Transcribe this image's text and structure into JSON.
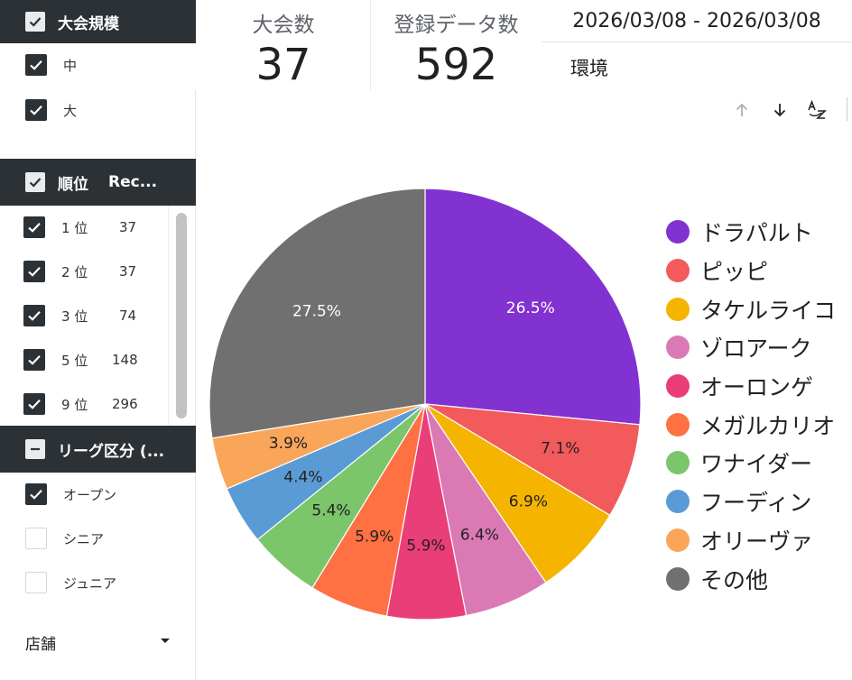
{
  "sidebar": {
    "size_filter": {
      "title": "大会規模",
      "options": [
        {
          "label": "中",
          "checked": true
        },
        {
          "label": "大",
          "checked": true
        }
      ]
    },
    "rank_filter": {
      "title": "順位",
      "column": "Rec...",
      "options": [
        {
          "label": "1 位",
          "count": "37",
          "checked": true
        },
        {
          "label": "2 位",
          "count": "37",
          "checked": true
        },
        {
          "label": "3 位",
          "count": "74",
          "checked": true
        },
        {
          "label": "5 位",
          "count": "148",
          "checked": true
        },
        {
          "label": "9 位",
          "count": "296",
          "checked": true
        }
      ]
    },
    "league_filter": {
      "title": "リーグ区分 (...",
      "options": [
        {
          "label": "オープン",
          "checked": true
        },
        {
          "label": "シニア",
          "checked": false
        },
        {
          "label": "ジュニア",
          "checked": false
        }
      ]
    },
    "store_dropdown": {
      "label": "店舗"
    }
  },
  "kpis": [
    {
      "label": "大会数",
      "value": "37"
    },
    {
      "label": "登録データ数",
      "value": "592"
    }
  ],
  "date_range": "2026/03/08 - 2026/03/08",
  "env_label": "環境",
  "toolbar": {
    "icons": [
      "arrow-up-icon",
      "arrow-down-icon",
      "sort-az-icon"
    ]
  },
  "colors": {
    "header_bg": "#2c3136"
  },
  "chart_data": {
    "type": "pie",
    "title": "",
    "legend_position": "right",
    "slices": [
      {
        "name": "ドラパルト",
        "value": 26.5,
        "label": "26.5%",
        "color": "#8232d1",
        "label_color": "#ffffff"
      },
      {
        "name": "ピッピ",
        "value": 7.1,
        "label": "7.1%",
        "color": "#f25a5c",
        "label_color": "#202124"
      },
      {
        "name": "タケルライコ",
        "value": 6.9,
        "label": "6.9%",
        "color": "#f5b400",
        "label_color": "#202124"
      },
      {
        "name": "ゾロアーク",
        "value": 6.4,
        "label": "6.4%",
        "color": "#db79b5",
        "label_color": "#202124"
      },
      {
        "name": "オーロンゲ",
        "value": 5.9,
        "label": "5.9%",
        "color": "#ea3e78",
        "label_color": "#202124"
      },
      {
        "name": "メガルカリオ",
        "value": 5.9,
        "label": "5.9%",
        "color": "#ff7043",
        "label_color": "#202124"
      },
      {
        "name": "ワナイダー",
        "value": 5.4,
        "label": "5.4%",
        "color": "#7bc56a",
        "label_color": "#202124"
      },
      {
        "name": "フーディン",
        "value": 4.4,
        "label": "4.4%",
        "color": "#5b9bd5",
        "label_color": "#202124"
      },
      {
        "name": "オリーヴァ",
        "value": 3.9,
        "label": "3.9%",
        "color": "#f9a65a",
        "label_color": "#202124"
      },
      {
        "name": "その他",
        "value": 27.5,
        "label": "27.5%",
        "color": "#707070",
        "label_color": "#ffffff"
      }
    ]
  }
}
